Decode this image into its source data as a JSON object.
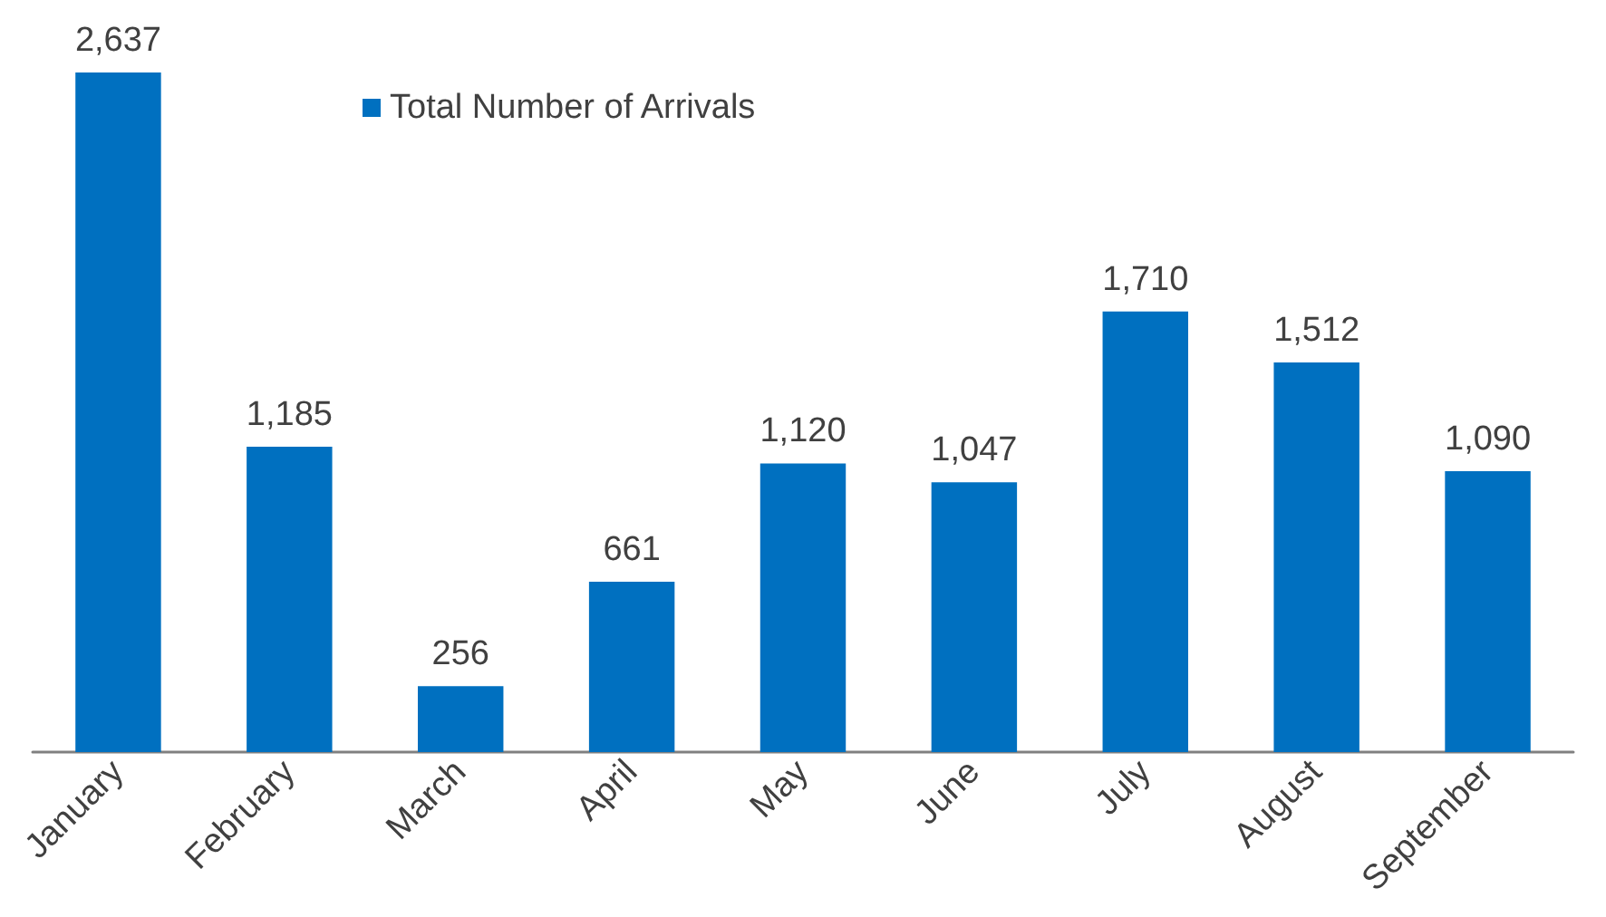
{
  "chart_data": {
    "type": "bar",
    "categories": [
      "January",
      "February",
      "March",
      "April",
      "May",
      "June",
      "July",
      "August",
      "September"
    ],
    "series": [
      {
        "name": "Total Number of Arrivals",
        "color": "#0070c0",
        "values": [
          2637,
          1185,
          256,
          661,
          1120,
          1047,
          1710,
          1512,
          1090
        ],
        "value_labels": [
          "2,637",
          "1,185",
          "256",
          "661",
          "1,120",
          "1,047",
          "1,710",
          "1,512",
          "1,090"
        ]
      }
    ],
    "legend": "top",
    "grid": false,
    "tick_labels": "x"
  }
}
